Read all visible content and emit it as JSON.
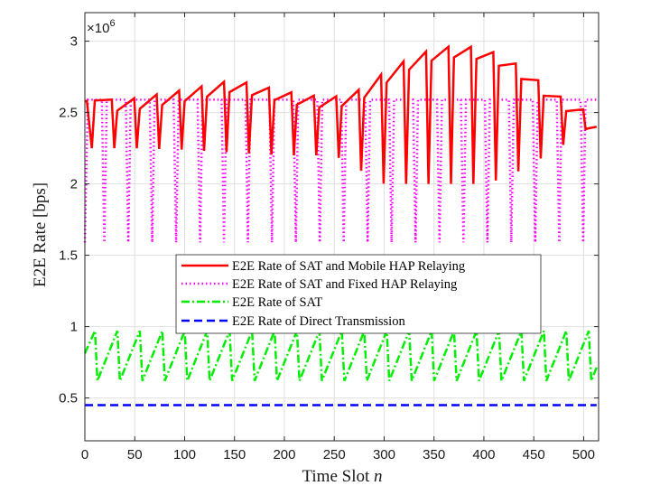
{
  "chart_data": {
    "type": "line",
    "title": "",
    "xlabel": "Time Slot",
    "xlabel_var": "n",
    "ylabel": "E2E Rate [bps]",
    "y_multiplier_label": "×10",
    "y_multiplier_exp": "6",
    "xlim": [
      0,
      515
    ],
    "ylim": [
      0.2,
      3.2
    ],
    "xticks": [
      0,
      50,
      100,
      150,
      200,
      250,
      300,
      350,
      400,
      450,
      500
    ],
    "xtick_labels": [
      "0",
      "50",
      "100",
      "150",
      "200",
      "250",
      "300",
      "350",
      "400",
      "450",
      "500"
    ],
    "yticks": [
      0.5,
      1,
      1.5,
      2,
      2.5,
      3
    ],
    "ytick_labels": [
      "0.5",
      "1",
      "1.5",
      "2",
      "2.5",
      "3"
    ],
    "legend_position": "center",
    "period": 22.5,
    "series": [
      {
        "name": "E2E Rate of SAT and Mobile HAP Relaying",
        "style": "solid",
        "color": "#ff0000",
        "description": "sawtooth: per-cycle peak follows envelope, drops at end of each cycle",
        "peak_envelope": {
          "x": [
            0,
            50,
            100,
            150,
            200,
            225,
            250,
            275,
            300,
            325,
            350,
            375,
            400,
            425,
            450,
            475,
            500,
            512
          ],
          "y": [
            2.58,
            2.6,
            2.66,
            2.73,
            2.65,
            2.62,
            2.61,
            2.66,
            2.78,
            2.88,
            2.95,
            2.97,
            2.95,
            2.88,
            2.75,
            2.62,
            2.52,
            2.4
          ]
        },
        "trough_envelope": {
          "x": [
            0,
            50,
            100,
            150,
            200,
            225,
            250,
            275,
            300,
            325,
            350,
            375,
            400,
            425,
            450,
            475,
            500,
            512
          ],
          "y": [
            2.25,
            2.25,
            2.24,
            2.22,
            2.2,
            2.2,
            2.2,
            2.1,
            2.0,
            2.0,
            2.0,
            2.0,
            2.0,
            2.05,
            2.15,
            2.25,
            2.38,
            2.4
          ]
        }
      },
      {
        "name": "E2E Rate of SAT and Fixed HAP Relaying",
        "style": "dotted",
        "color": "#ff00ff",
        "peak": 2.59,
        "trough": 1.59
      },
      {
        "name": "E2E Rate of SAT",
        "style": "dashdot",
        "color": "#00ee00",
        "peak": 0.97,
        "trough": 0.62
      },
      {
        "name": "E2E Rate of Direct Transmission",
        "style": "dashed",
        "color": "#0000ff",
        "value": 0.45
      }
    ]
  }
}
